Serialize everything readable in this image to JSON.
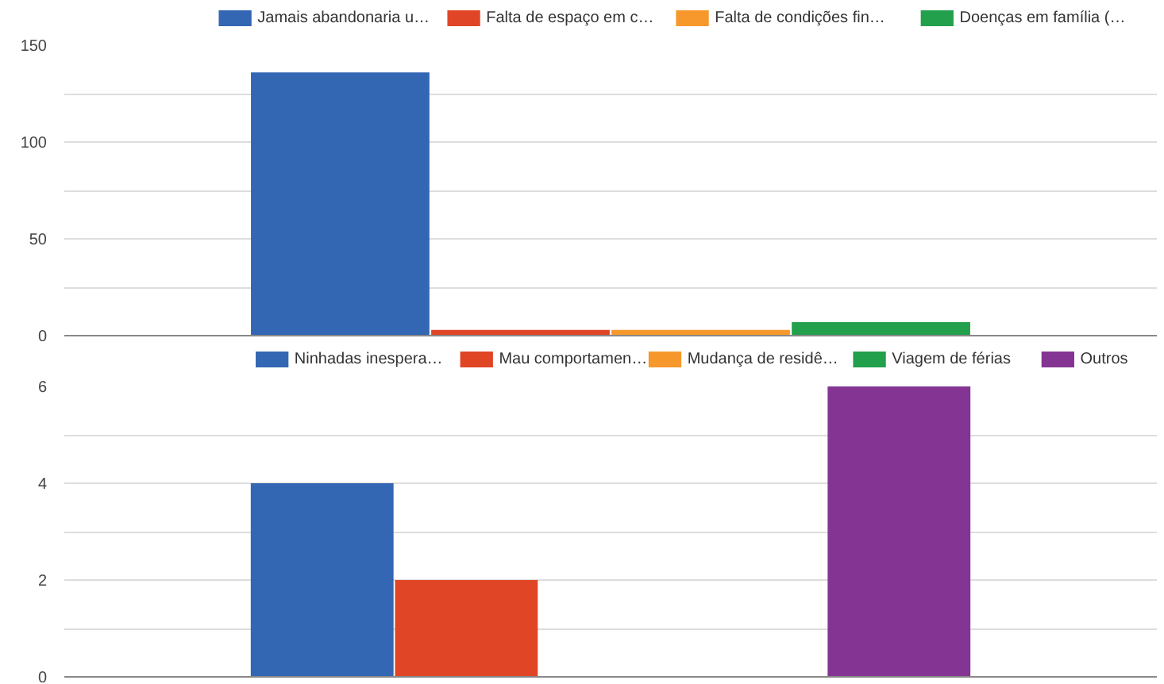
{
  "chart_data": [
    {
      "type": "bar",
      "categories": [
        null
      ],
      "ylim": [
        0,
        150
      ],
      "yticks": [
        0,
        {
          "value": 25,
          "label": null
        },
        50,
        {
          "value": 75,
          "label": null
        },
        100,
        {
          "value": 125,
          "label": null
        },
        150
      ],
      "grid": "y",
      "legend": "top",
      "series": [
        {
          "name": "Jamais abandonaria u…",
          "color": "#3366b3",
          "values": [
            136
          ]
        },
        {
          "name": "Falta de espaço em c…",
          "color": "#e04526",
          "values": [
            3
          ]
        },
        {
          "name": "Falta de condições fin…",
          "color": "#f7982d",
          "values": [
            3
          ]
        },
        {
          "name": "Doenças em família (…",
          "color": "#22a04b",
          "values": [
            7
          ]
        }
      ]
    },
    {
      "type": "bar",
      "categories": [
        null
      ],
      "ylim": [
        0,
        6
      ],
      "yticks": [
        0,
        {
          "value": 1,
          "label": null
        },
        2,
        {
          "value": 3,
          "label": null
        },
        4,
        {
          "value": 5,
          "label": null
        },
        6
      ],
      "grid": "y",
      "legend": "top",
      "series": [
        {
          "name": "Ninhadas inespera…",
          "color": "#3366b3",
          "values": [
            4
          ]
        },
        {
          "name": "Mau comportamen…",
          "color": "#e04526",
          "values": [
            2
          ]
        },
        {
          "name": "Mudança de residê…",
          "color": "#f7982d",
          "values": [
            0
          ]
        },
        {
          "name": "Viagem de férias",
          "color": "#22a04b",
          "values": [
            0
          ]
        },
        {
          "name": "Outros",
          "color": "#843593",
          "values": [
            6
          ]
        }
      ]
    }
  ]
}
